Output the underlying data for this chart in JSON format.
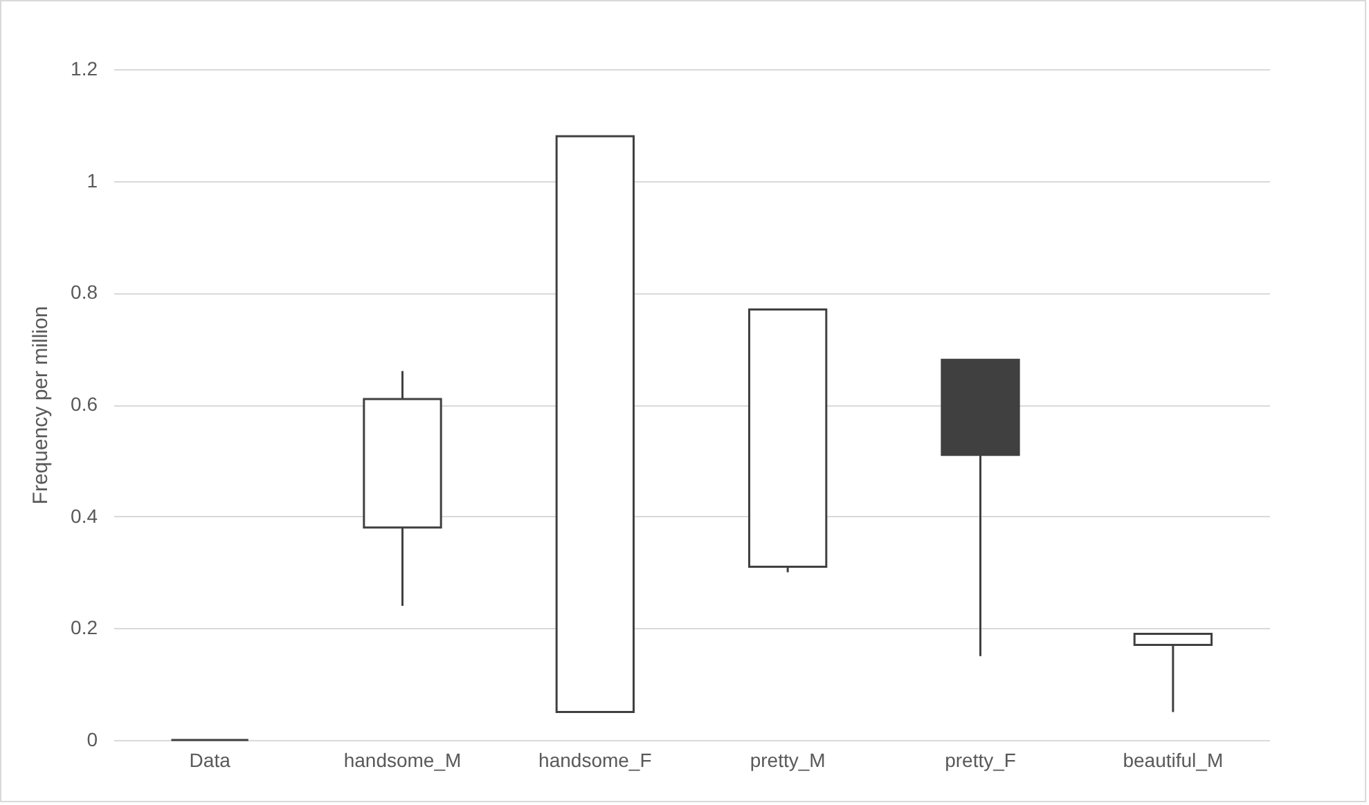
{
  "chart_data": {
    "type": "candlestick",
    "ylabel": "Frequency per million",
    "categories": [
      "Data",
      "handsome_M",
      "handsome_F",
      "pretty_M",
      "pretty_F",
      "beautiful_M"
    ],
    "ohlc": [
      [
        0,
        0,
        0,
        0
      ],
      [
        0.38,
        0.66,
        0.24,
        0.61
      ],
      [
        0.05,
        1.08,
        0.05,
        1.08
      ],
      [
        0.31,
        0.77,
        0.3,
        0.77
      ],
      [
        0.68,
        0.68,
        0.15,
        0.51
      ],
      [
        0.17,
        0.19,
        0.05,
        0.19
      ]
    ],
    "ylim": [
      0,
      1.2
    ],
    "yticks": [
      0,
      0.2,
      0.4,
      0.6,
      0.8,
      1,
      1.2
    ],
    "grid": true
  }
}
